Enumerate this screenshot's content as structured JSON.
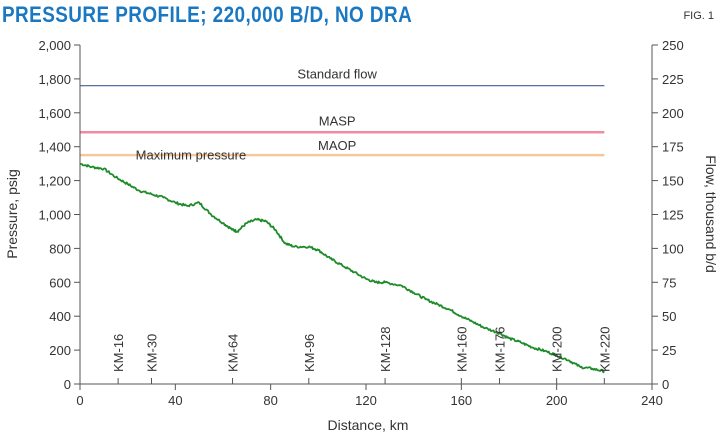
{
  "header": {
    "title": "PRESSURE PROFILE; 220,000 B/D, NO DRA",
    "fig_label": "FIG. 1"
  },
  "colors": {
    "title": "#1a78c2",
    "pressure_line": "#1e8c2a",
    "standard_flow": "#4a5a9a",
    "masp": "#f08ca0",
    "maop": "#f4c89a",
    "axis": "#555555"
  },
  "chart_data": {
    "type": "line",
    "title": "PRESSURE PROFILE; 220,000 B/D, NO DRA",
    "xlabel": "Distance, km",
    "ylabel": "Pressure, psig",
    "y2label": "Flow, thousand b/d",
    "xlim": [
      0,
      240
    ],
    "ylim": [
      0,
      2000
    ],
    "y2lim": [
      0,
      250
    ],
    "xticks": [
      0,
      40,
      80,
      120,
      160,
      200,
      240
    ],
    "xtick_labels": [
      "0",
      "40",
      "80",
      "120",
      "160",
      "200",
      "240"
    ],
    "yticks": [
      0,
      200,
      400,
      600,
      800,
      1000,
      1200,
      1400,
      1600,
      1800,
      2000
    ],
    "ytick_labels": [
      "0",
      "200",
      "400",
      "600",
      "800",
      "1,000",
      "1,200",
      "1,400",
      "1,600",
      "1,800",
      "2,000"
    ],
    "y2ticks": [
      0,
      25,
      50,
      75,
      100,
      125,
      150,
      175,
      200,
      225,
      250
    ],
    "y2tick_labels": [
      "0",
      "25",
      "50",
      "75",
      "100",
      "125",
      "150",
      "175",
      "200",
      "225",
      "250"
    ],
    "reference_lines": [
      {
        "name": "Standard flow",
        "axis": "y2",
        "value": 220,
        "x_end": 220,
        "color": "#4a5a9a"
      },
      {
        "name": "MASP",
        "axis": "y",
        "value": 1485,
        "x_end": 220,
        "color": "#f08ca0"
      },
      {
        "name": "MAOP",
        "axis": "y",
        "value": 1350,
        "x_end": 220,
        "color": "#f4c89a"
      }
    ],
    "series": [
      {
        "name": "Maximum pressure",
        "color": "#1e8c2a",
        "x": [
          0,
          5,
          10,
          15,
          20,
          25,
          30,
          35,
          40,
          45,
          50,
          55,
          60,
          64,
          66,
          70,
          74,
          78,
          82,
          86,
          90,
          96,
          100,
          105,
          110,
          115,
          120,
          124,
          128,
          135,
          140,
          145,
          150,
          155,
          160,
          165,
          170,
          176,
          180,
          185,
          190,
          195,
          200,
          205,
          210,
          215,
          220
        ],
        "y": [
          1300,
          1280,
          1270,
          1220,
          1180,
          1140,
          1120,
          1100,
          1070,
          1050,
          1070,
          1000,
          950,
          910,
          900,
          950,
          970,
          960,
          910,
          830,
          810,
          810,
          790,
          740,
          700,
          660,
          620,
          600,
          600,
          580,
          540,
          500,
          470,
          440,
          400,
          365,
          330,
          300,
          270,
          245,
          215,
          195,
          170,
          140,
          100,
          90,
          75
        ]
      }
    ],
    "annotations": [
      "KM-16",
      "KM-30",
      "KM-64",
      "KM-96",
      "KM-128",
      "KM-160",
      "KM-176",
      "KM-200",
      "KM-220"
    ],
    "annotation_x": [
      16,
      30,
      64,
      96,
      128,
      160,
      176,
      200,
      220
    ],
    "grid": false
  }
}
